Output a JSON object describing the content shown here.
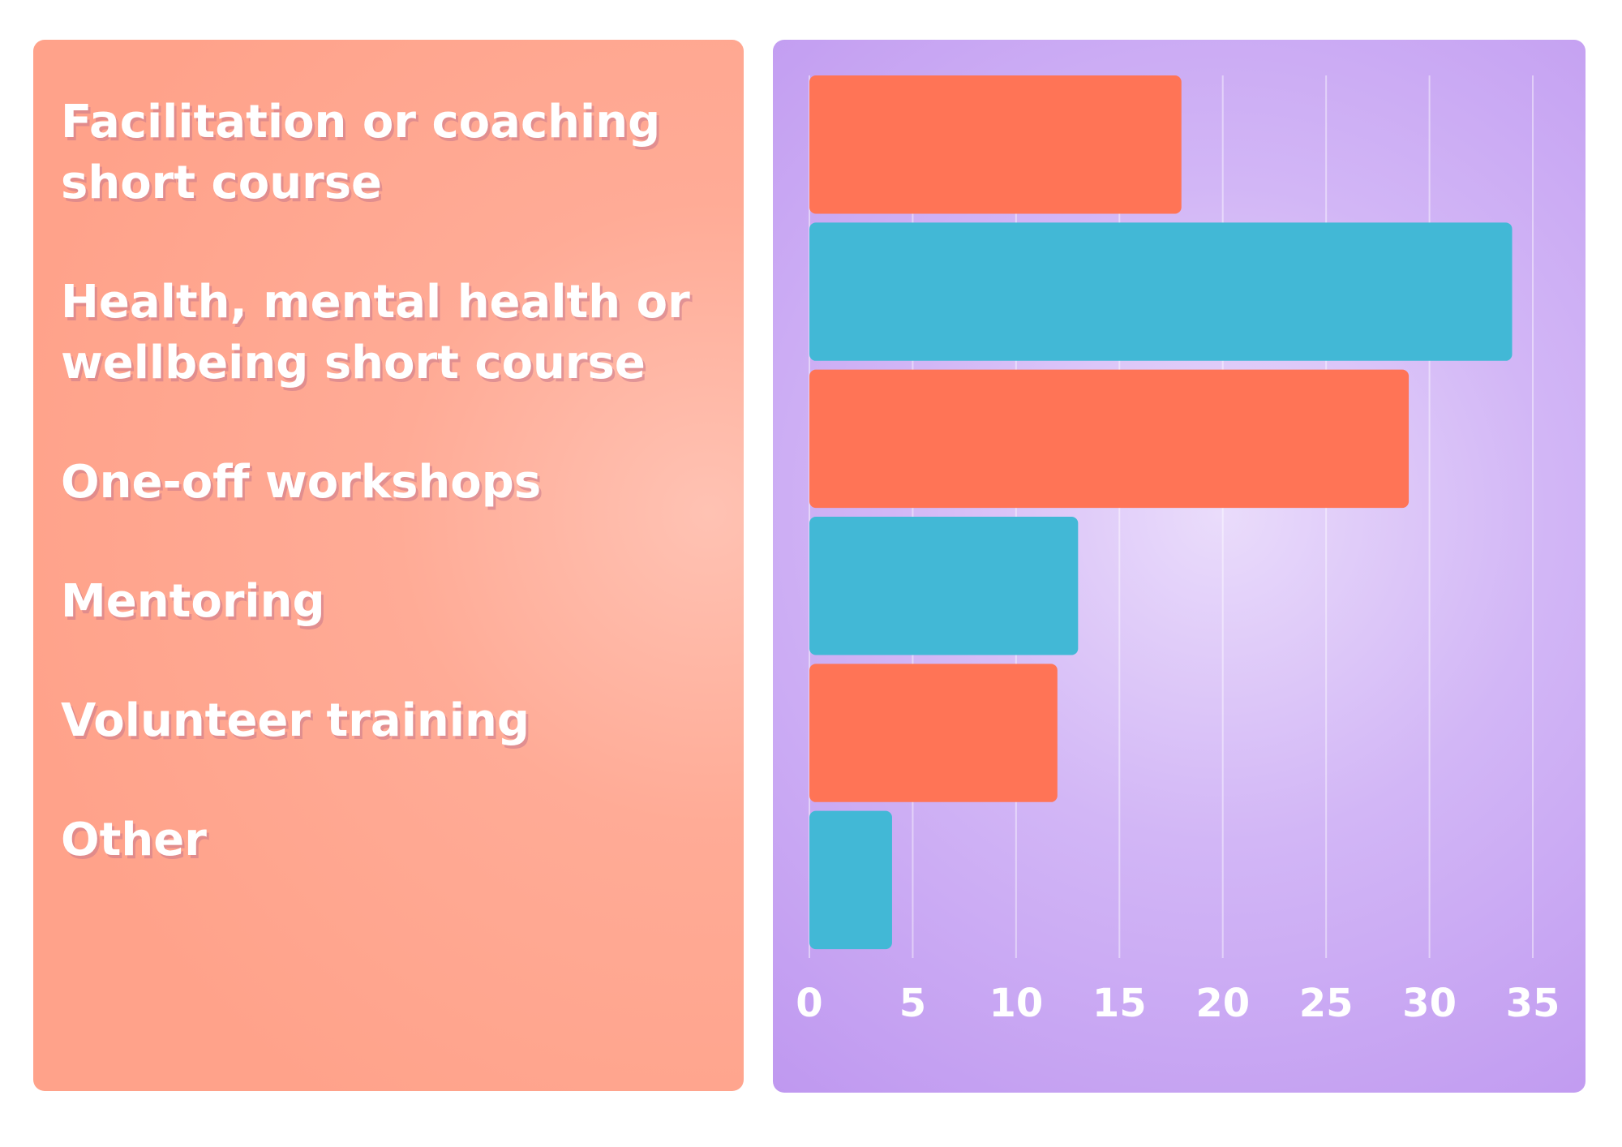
{
  "chart_data": {
    "type": "barh",
    "categories": [
      "Facilitation or coaching short course",
      "Health, mental health or wellbeing short course",
      "One-off workshops",
      "Mentoring",
      "Volunteer training",
      "Other"
    ],
    "values": [
      18,
      34,
      29,
      13,
      12,
      4
    ],
    "colors": [
      "#ff7456",
      "#42b8d6",
      "#ff7456",
      "#42b8d6",
      "#ff7456",
      "#42b8d6"
    ],
    "xlim": [
      0,
      35
    ],
    "xticks": [
      0,
      5,
      10,
      15,
      20,
      25,
      30,
      35
    ],
    "grid": true
  }
}
